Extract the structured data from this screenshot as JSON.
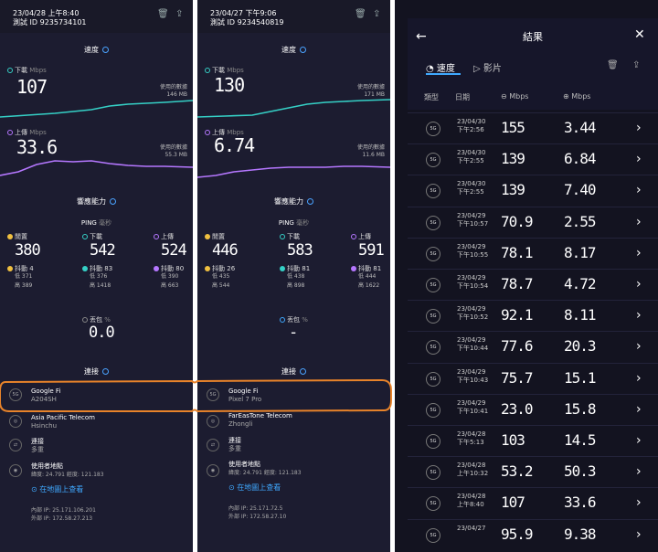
{
  "colors": {
    "download": "#35d0c6",
    "upload": "#b577ff",
    "accent": "#3fa9ff",
    "highlight": "#e8832a"
  },
  "panels": [
    {
      "date": "23/04/28 上午8:40",
      "test_id": "測試 ID 9235734101",
      "speed_title": "速度",
      "download": {
        "label": "下載",
        "unit": "Mbps",
        "value": "107",
        "data_label": "使用的數據",
        "data_value": "146 MB"
      },
      "upload": {
        "label": "上傳",
        "unit": "Mbps",
        "value": "33.6",
        "data_label": "使用的數據",
        "data_value": "55.3 MB"
      },
      "responsiveness_title": "響應能力",
      "ping_label": "PING",
      "ping_unit": "毫秒",
      "idle": {
        "label": "閒置",
        "value": "380",
        "jitter_label": "抖動",
        "jitter": "4",
        "low": "低 371",
        "high": "高 389"
      },
      "dl_ping": {
        "label": "下載",
        "value": "542",
        "jitter_label": "抖動",
        "jitter": "83",
        "low": "低 376",
        "high": "高 1418"
      },
      "ul_ping": {
        "label": "上傳",
        "value": "524",
        "jitter_label": "抖動",
        "jitter": "80",
        "low": "低 390",
        "high": "高 663"
      },
      "loss_label": "丟包",
      "loss_unit": "%",
      "loss_value": "0.0",
      "conn_title": "連接",
      "carrier": "Google Fi",
      "device": "A204SH",
      "server": "Asia Pacific Telecom",
      "server_city": "Hsinchu",
      "conn_label": "連接",
      "conn_value": "多重",
      "loc_label": "使用者地點",
      "loc_value": "緯度: 24.791 經度: 121.183",
      "map_link": "在地圖上查看",
      "internal_ip": "內部 IP: 25.171.106.201",
      "external_ip": "外部 IP: 172.58.27.213"
    },
    {
      "date": "23/04/27 下午9:06",
      "test_id": "測試 ID 9234540819",
      "speed_title": "速度",
      "download": {
        "label": "下載",
        "unit": "Mbps",
        "value": "130",
        "data_label": "使用的數據",
        "data_value": "171 MB"
      },
      "upload": {
        "label": "上傳",
        "unit": "Mbps",
        "value": "6.74",
        "data_label": "使用的數據",
        "data_value": "11.6 MB"
      },
      "responsiveness_title": "響應能力",
      "ping_label": "PING",
      "ping_unit": "毫秒",
      "idle": {
        "label": "閒置",
        "value": "446",
        "jitter_label": "抖動",
        "jitter": "26",
        "low": "低 435",
        "high": "高 544"
      },
      "dl_ping": {
        "label": "下載",
        "value": "583",
        "jitter_label": "抖動",
        "jitter": "81",
        "low": "低 438",
        "high": "高 898"
      },
      "ul_ping": {
        "label": "上傳",
        "value": "591",
        "jitter_label": "抖動",
        "jitter": "81",
        "low": "低 444",
        "high": "高 1622"
      },
      "loss_label": "丟包",
      "loss_unit": "%",
      "loss_value": "-",
      "conn_title": "連接",
      "carrier": "Google Fi",
      "device": "Pixel 7 Pro",
      "server": "FarEasTone Telecom",
      "server_city": "Zhongli",
      "conn_label": "連接",
      "conn_value": "多重",
      "loc_label": "使用者地點",
      "loc_value": "緯度: 24.791 經度: 121.183",
      "map_link": "在地圖上查看",
      "internal_ip": "內部 IP: 25.171.72.5",
      "external_ip": "外部 IP: 172.58.27.10"
    }
  ],
  "results": {
    "title": "結果",
    "tab_speed": "速度",
    "tab_video": "影片",
    "col_type": "類型",
    "col_date": "日期",
    "col_dl": "Mbps",
    "col_ul": "Mbps",
    "rows": [
      {
        "type": "5G",
        "date": "23/04/30",
        "time": "下午2:56",
        "dl": "155",
        "ul": "3.44"
      },
      {
        "type": "5G",
        "date": "23/04/30",
        "time": "下午2:55",
        "dl": "139",
        "ul": "6.84"
      },
      {
        "type": "5G",
        "date": "23/04/30",
        "time": "下午2:55",
        "dl": "139",
        "ul": "7.40"
      },
      {
        "type": "5G",
        "date": "23/04/29",
        "time": "下午10:57",
        "dl": "70.9",
        "ul": "2.55"
      },
      {
        "type": "5G",
        "date": "23/04/29",
        "time": "下午10:55",
        "dl": "78.1",
        "ul": "8.17"
      },
      {
        "type": "5G",
        "date": "23/04/29",
        "time": "下午10:54",
        "dl": "78.7",
        "ul": "4.72"
      },
      {
        "type": "5G",
        "date": "23/04/29",
        "time": "下午10:52",
        "dl": "92.1",
        "ul": "8.11"
      },
      {
        "type": "5G",
        "date": "23/04/29",
        "time": "下午10:44",
        "dl": "77.6",
        "ul": "20.3"
      },
      {
        "type": "5G",
        "date": "23/04/29",
        "time": "下午10:43",
        "dl": "75.7",
        "ul": "15.1"
      },
      {
        "type": "5G",
        "date": "23/04/29",
        "time": "下午10:41",
        "dl": "23.0",
        "ul": "15.8"
      },
      {
        "type": "5G",
        "date": "23/04/28",
        "time": "下午5:13",
        "dl": "103",
        "ul": "14.5"
      },
      {
        "type": "5G",
        "date": "23/04/28",
        "time": "上午10:32",
        "dl": "53.2",
        "ul": "50.3"
      },
      {
        "type": "5G",
        "date": "23/04/28",
        "time": "上午8:40",
        "dl": "107",
        "ul": "33.6"
      },
      {
        "type": "5G",
        "date": "23/04/27",
        "time": "",
        "dl": "95.9",
        "ul": "9.38"
      }
    ]
  }
}
